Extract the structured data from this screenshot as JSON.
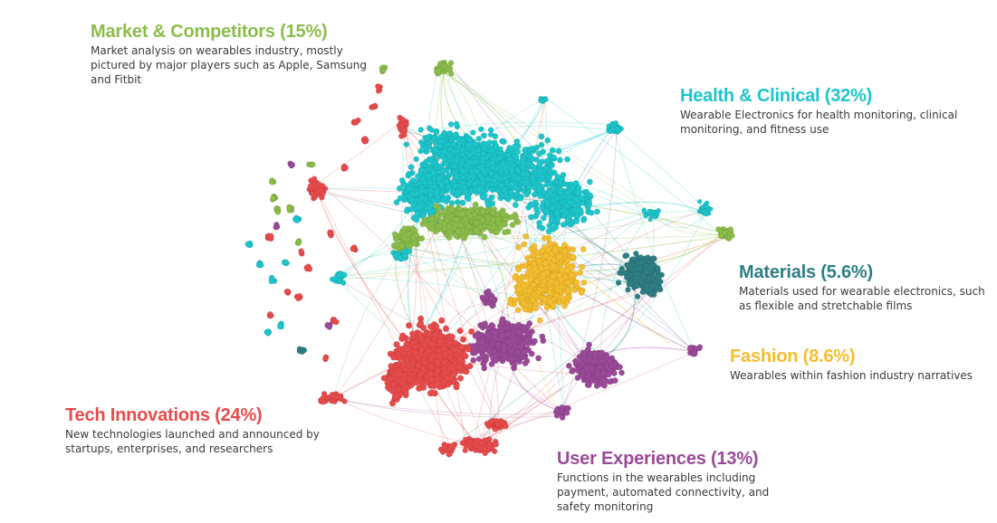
{
  "clusters": [
    {
      "id": "market",
      "title": "Market & Competitors (15%)",
      "description": "Market analysis on wearables industry, mostly pictured by major players such as Apple, Samsung and Fitbit",
      "color": "#8cbd4a"
    },
    {
      "id": "health",
      "title": "Health & Clinical (32%)",
      "description": "Wearable Electronics for health monitoring, clinical monitoring, and fitness use",
      "color": "#1cc6cc"
    },
    {
      "id": "materials",
      "title": "Materials (5.6%)",
      "description": "Materials used for wearable electronics, such as flexible and stretchable films",
      "color": "#2e7f85"
    },
    {
      "id": "fashion",
      "title": "Fashion (8.6%)",
      "description": "Wearables within fashion industry narratives",
      "color": "#f5be2e"
    },
    {
      "id": "tech",
      "title": "Tech Innovations (24%)",
      "description": "New technologies launched and announced by startups, enterprises, and researchers",
      "color": "#e84b4b"
    },
    {
      "id": "user",
      "title": "User Experiences (13%)",
      "description": "Functions in the wearables including payment, automated connectivity, and safety monitoring",
      "color": "#9a4a98"
    }
  ]
}
